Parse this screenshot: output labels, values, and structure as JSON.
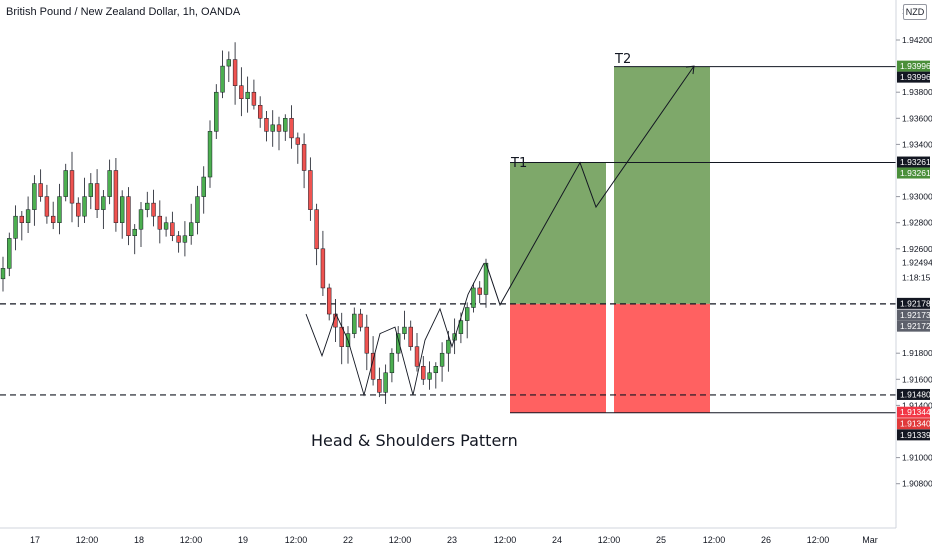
{
  "header": {
    "title": "British Pound / New Zealand Dollar, 1h, OANDA",
    "currency": "NZD"
  },
  "annotations": {
    "t1": "T1",
    "t2": "T2",
    "pattern": "Head & Shoulders Pattern"
  },
  "chart_data": {
    "type": "candlestick",
    "y_axis_labels": [
      "1.94200",
      "1.93800",
      "1.93600",
      "1.93400",
      "1.93000",
      "1.92800",
      "1.92600",
      "1.91800",
      "1.91600",
      "1.91400",
      "1.91000",
      "1.90800"
    ],
    "y_axis_top_partial": "1.9",
    "x_axis_labels": [
      "17",
      "12:00",
      "18",
      "12:00",
      "19",
      "12:00",
      "22",
      "12:00",
      "23",
      "12:00",
      "24",
      "12:00",
      "25",
      "12:00",
      "26",
      "12:00",
      "Mar"
    ],
    "price_tags": [
      {
        "text": "1.93996",
        "price": 1.93996,
        "bg": "#4a8f3a",
        "color": "#ffffff"
      },
      {
        "text": "1.93996",
        "price": 1.93996,
        "bg": "#131722",
        "color": "#ffffff",
        "offset": 1
      },
      {
        "text": "1.93261",
        "price": 1.93261,
        "bg": "#131722",
        "color": "#ffffff"
      },
      {
        "text": "1.93261",
        "price": 1.93261,
        "bg": "#4a8f3a",
        "color": "#ffffff",
        "offset": 1
      },
      {
        "text": "1.92178",
        "price": 1.92178,
        "bg": "#131722",
        "color": "#ffffff"
      },
      {
        "text": "1.92173",
        "price": 1.92173,
        "bg": "#5d606b",
        "color": "#ffffff",
        "offset": 1
      },
      {
        "text": "1.92172",
        "price": 1.92172,
        "bg": "#5d606b",
        "color": "#ffffff",
        "offset": 2
      },
      {
        "text": "1.91480",
        "price": 1.9148,
        "bg": "#131722",
        "color": "#ffffff"
      },
      {
        "text": "1.91344",
        "price": 1.91344,
        "bg": "#f23645",
        "color": "#ffffff"
      },
      {
        "text": "1.91340",
        "price": 1.9134,
        "bg": "#e03a3a",
        "color": "#ffffff",
        "offset": 1
      },
      {
        "text": "1.91339",
        "price": 1.91339,
        "bg": "#131722",
        "color": "#ffffff",
        "offset": 2
      }
    ],
    "current_price": "1.92494",
    "countdown": "1:18:15",
    "levels": {
      "t1": 1.93261,
      "t2": 1.93996,
      "entry": 1.92178,
      "neckline": 1.9148,
      "stop": 1.91344
    },
    "colors": {
      "up": "#4caf50",
      "down": "#ef5350",
      "profit": "#7ea86a",
      "loss": "#ff6161"
    },
    "candles_close_path": [
      1.9245,
      1.9268,
      1.9285,
      1.928,
      1.929,
      1.931,
      1.93,
      1.9285,
      1.928,
      1.93,
      1.932,
      1.9295,
      1.9285,
      1.93,
      1.931,
      1.929,
      1.93,
      1.932,
      1.928,
      1.93,
      1.927,
      1.9275,
      1.929,
      1.9295,
      1.9285,
      1.9275,
      1.928,
      1.927,
      1.9265,
      1.927,
      1.928,
      1.93,
      1.9315,
      1.935,
      1.938,
      1.94,
      1.9405,
      1.9385,
      1.9375,
      1.938,
      1.937,
      1.936,
      1.935,
      1.9355,
      1.935,
      1.936,
      1.9345,
      1.934,
      1.932,
      1.929,
      1.926,
      1.923,
      1.921,
      1.92,
      1.9185,
      1.9195,
      1.921,
      1.92,
      1.918,
      1.916,
      1.915,
      1.9165,
      1.918,
      1.9195,
      1.92,
      1.9185,
      1.917,
      1.916,
      1.9165,
      1.917,
      1.918,
      1.919,
      1.9195,
      1.9205,
      1.9215,
      1.923,
      1.9225,
      1.9249
    ]
  }
}
